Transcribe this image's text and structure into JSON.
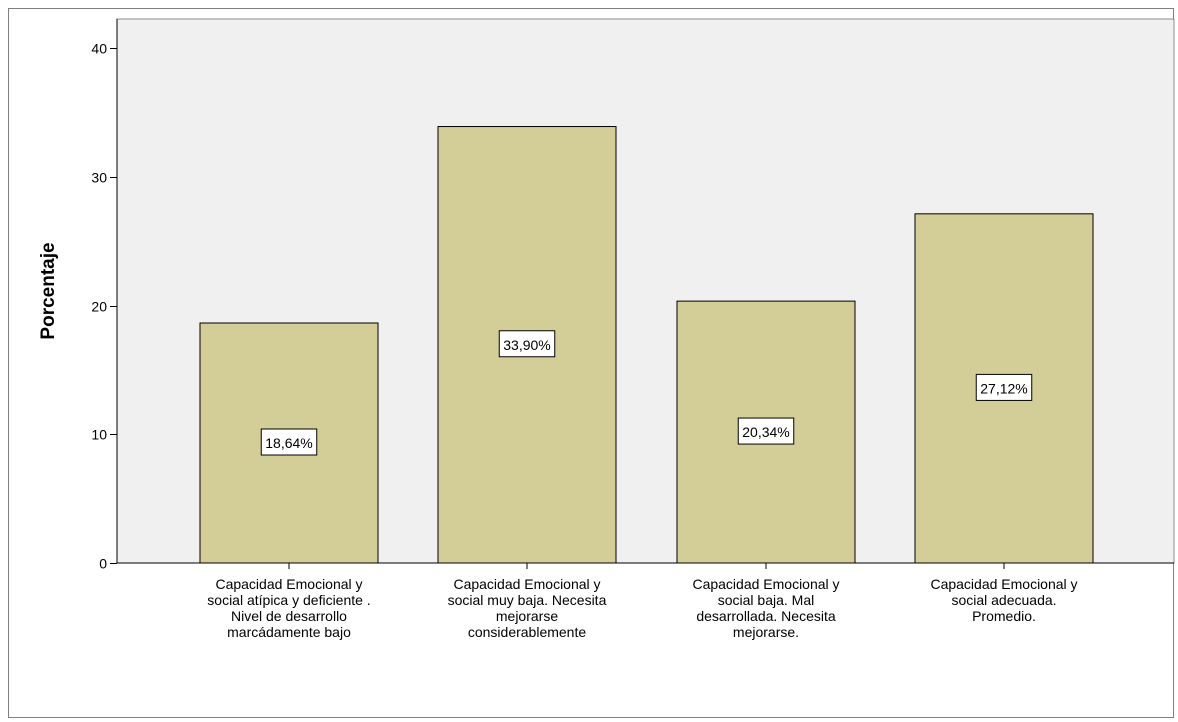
{
  "chart_data": {
    "type": "bar",
    "title": "",
    "xlabel": "",
    "ylabel": "Porcentaje",
    "ylim": [
      0,
      40
    ],
    "yticks": [
      0,
      10,
      20,
      30,
      40
    ],
    "grid": false,
    "categories": [
      [
        "Capacidad Emocional y",
        "social atípica y deficiente .",
        "Nivel de desarrollo",
        "marcádamente bajo"
      ],
      [
        "Capacidad Emocional y",
        "social muy baja. Necesita",
        "mejorarse",
        "considerablemente"
      ],
      [
        "Capacidad Emocional y",
        "social baja. Mal",
        "desarrollada. Necesita",
        "mejorarse."
      ],
      [
        "Capacidad Emocional y",
        "social adecuada.",
        "Promedio."
      ]
    ],
    "values": [
      18.64,
      33.9,
      20.34,
      27.12
    ],
    "data_labels": [
      "18,64%",
      "33,90%",
      "20,34%",
      "27,12%"
    ],
    "colors": {
      "bar_fill": "#d3ce97",
      "bar_stroke": "#000000",
      "plot_background": "#f0f0f0",
      "axis": "#000000"
    }
  }
}
